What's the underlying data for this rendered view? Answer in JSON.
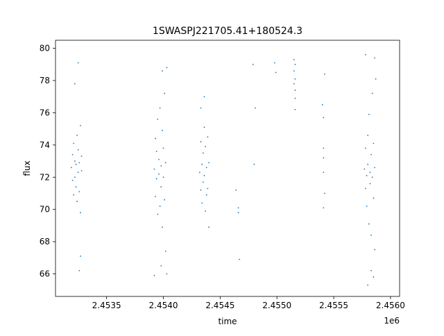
{
  "chart_data": {
    "type": "scatter",
    "title": "1SWASPJ221705.41+180524.3",
    "xlabel": "time",
    "ylabel": "flux",
    "x_offset_label": "1e6",
    "xlim": [
      2.45305,
      2.45608
    ],
    "ylim": [
      64.6,
      80.5
    ],
    "x_ticks": [
      {
        "value": 2.4535,
        "label": "2.4535"
      },
      {
        "value": 2.454,
        "label": "2.4540"
      },
      {
        "value": 2.4545,
        "label": "2.4545"
      },
      {
        "value": 2.455,
        "label": "2.4550"
      },
      {
        "value": 2.4555,
        "label": "2.4555"
      },
      {
        "value": 2.456,
        "label": "2.4560"
      }
    ],
    "y_ticks": [
      {
        "value": 66,
        "label": "66"
      },
      {
        "value": 68,
        "label": "68"
      },
      {
        "value": 70,
        "label": "70"
      },
      {
        "value": 72,
        "label": "72"
      },
      {
        "value": 74,
        "label": "74"
      },
      {
        "value": 76,
        "label": "76"
      },
      {
        "value": 78,
        "label": "78"
      },
      {
        "value": 80,
        "label": "80"
      }
    ],
    "grid": false,
    "legend": "none",
    "point_color": "#1f77b4",
    "series": [
      {
        "points": [
          [
            2.45319,
            72.6
          ],
          [
            2.4532,
            71.8
          ],
          [
            2.4532,
            73.4
          ],
          [
            2.45321,
            70.9
          ],
          [
            2.45321,
            74.1
          ],
          [
            2.45322,
            72.0
          ],
          [
            2.45322,
            73.0
          ],
          [
            2.45323,
            71.4
          ],
          [
            2.45323,
            72.8
          ],
          [
            2.45324,
            74.6
          ],
          [
            2.45324,
            70.5
          ],
          [
            2.45325,
            72.3
          ],
          [
            2.45325,
            73.7
          ],
          [
            2.45326,
            71.1
          ],
          [
            2.45326,
            72.9
          ],
          [
            2.45327,
            69.8
          ],
          [
            2.45327,
            75.2
          ],
          [
            2.45328,
            72.4
          ],
          [
            2.45328,
            73.3
          ],
          [
            2.45322,
            77.8
          ],
          [
            2.45325,
            79.1
          ],
          [
            2.45327,
            67.1
          ],
          [
            2.45326,
            66.2
          ],
          [
            2.45392,
            72.5
          ],
          [
            2.45393,
            70.8
          ],
          [
            2.45393,
            74.4
          ],
          [
            2.45394,
            71.9
          ],
          [
            2.45394,
            73.6
          ],
          [
            2.45395,
            69.7
          ],
          [
            2.45395,
            75.6
          ],
          [
            2.45396,
            72.2
          ],
          [
            2.45396,
            73.1
          ],
          [
            2.45397,
            70.2
          ],
          [
            2.45397,
            76.3
          ],
          [
            2.45398,
            72.7
          ],
          [
            2.45398,
            71.4
          ],
          [
            2.45399,
            74.9
          ],
          [
            2.45399,
            68.9
          ],
          [
            2.454,
            73.8
          ],
          [
            2.454,
            72.0
          ],
          [
            2.45401,
            70.6
          ],
          [
            2.45401,
            77.2
          ],
          [
            2.45402,
            72.9
          ],
          [
            2.45402,
            67.4
          ],
          [
            2.45392,
            65.9
          ],
          [
            2.45398,
            66.5
          ],
          [
            2.45399,
            78.6
          ],
          [
            2.45403,
            78.8
          ],
          [
            2.45403,
            66.0
          ],
          [
            2.45432,
            72.3
          ],
          [
            2.45433,
            71.2
          ],
          [
            2.45433,
            74.2
          ],
          [
            2.45434,
            72.8
          ],
          [
            2.45434,
            70.4
          ],
          [
            2.45435,
            73.5
          ],
          [
            2.45435,
            71.7
          ],
          [
            2.45436,
            75.1
          ],
          [
            2.45436,
            72.1
          ],
          [
            2.45437,
            69.9
          ],
          [
            2.45437,
            73.9
          ],
          [
            2.45438,
            72.6
          ],
          [
            2.45438,
            70.9
          ],
          [
            2.45439,
            74.5
          ],
          [
            2.45439,
            71.3
          ],
          [
            2.4544,
            72.9
          ],
          [
            2.45436,
            77.0
          ],
          [
            2.45433,
            76.3
          ],
          [
            2.4544,
            68.9
          ],
          [
            2.45464,
            71.2
          ],
          [
            2.45466,
            70.1
          ],
          [
            2.45466,
            69.8
          ],
          [
            2.45467,
            66.9
          ],
          [
            2.45479,
            79.0
          ],
          [
            2.45481,
            76.3
          ],
          [
            2.4548,
            72.8
          ],
          [
            2.45498,
            79.1
          ],
          [
            2.45499,
            78.5
          ],
          [
            2.45515,
            79.3
          ],
          [
            2.45515,
            78.6
          ],
          [
            2.45515,
            77.8
          ],
          [
            2.45516,
            78.1
          ],
          [
            2.45516,
            76.9
          ],
          [
            2.45516,
            77.4
          ],
          [
            2.45516,
            76.2
          ],
          [
            2.45516,
            79.0
          ],
          [
            2.4554,
            76.5
          ],
          [
            2.45541,
            75.7
          ],
          [
            2.45541,
            73.8
          ],
          [
            2.45541,
            73.2
          ],
          [
            2.45541,
            72.3
          ],
          [
            2.45541,
            70.1
          ],
          [
            2.45542,
            78.4
          ],
          [
            2.45542,
            71.0
          ],
          [
            2.45577,
            72.5
          ],
          [
            2.45578,
            71.3
          ],
          [
            2.45578,
            73.8
          ],
          [
            2.45579,
            72.1
          ],
          [
            2.45579,
            70.2
          ],
          [
            2.4558,
            74.6
          ],
          [
            2.4558,
            72.8
          ],
          [
            2.45581,
            69.1
          ],
          [
            2.45581,
            75.9
          ],
          [
            2.45582,
            72.3
          ],
          [
            2.45582,
            71.6
          ],
          [
            2.45583,
            73.4
          ],
          [
            2.45583,
            68.4
          ],
          [
            2.45584,
            77.2
          ],
          [
            2.45584,
            72.0
          ],
          [
            2.45585,
            70.7
          ],
          [
            2.45585,
            74.1
          ],
          [
            2.45586,
            72.6
          ],
          [
            2.45586,
            67.5
          ],
          [
            2.45587,
            78.1
          ],
          [
            2.45578,
            79.6
          ],
          [
            2.4558,
            65.3
          ],
          [
            2.45583,
            66.2
          ],
          [
            2.45586,
            79.4
          ],
          [
            2.45585,
            65.8
          ]
        ]
      }
    ]
  }
}
